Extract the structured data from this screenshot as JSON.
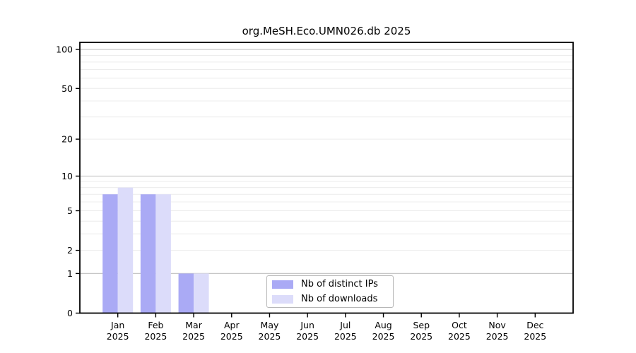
{
  "title": "org.MeSH.Eco.UMN026.db 2025",
  "chart_data": {
    "type": "bar",
    "title": "org.MeSH.Eco.UMN026.db 2025",
    "categories": [
      "Jan 2025",
      "Feb 2025",
      "Mar 2025",
      "Apr 2025",
      "May 2025",
      "Jun 2025",
      "Jul 2025",
      "Aug 2025",
      "Sep 2025",
      "Oct 2025",
      "Nov 2025",
      "Dec 2025"
    ],
    "x_tick_line1": [
      "Jan",
      "Feb",
      "Mar",
      "Apr",
      "May",
      "Jun",
      "Jul",
      "Aug",
      "Sep",
      "Oct",
      "Nov",
      "Dec"
    ],
    "x_tick_line2": "2025",
    "series": [
      {
        "name": "Nb of distinct IPs",
        "color": "#aaaaf5",
        "values": [
          7,
          7,
          1,
          0,
          0,
          0,
          0,
          0,
          0,
          0,
          0,
          0
        ]
      },
      {
        "name": "Nb of downloads",
        "color": "#dcdcfa",
        "values": [
          8,
          7,
          1,
          0,
          0,
          0,
          0,
          0,
          0,
          0,
          0,
          0
        ]
      }
    ],
    "y_scale": "log1p",
    "ylim": [
      0,
      113
    ],
    "y_tick_values": [
      "0",
      "1",
      "2",
      "5",
      "10",
      "20",
      "50",
      "100"
    ],
    "y_major_gridlines": [
      1,
      10,
      100
    ],
    "y_minor_gridlines": [
      2,
      3,
      4,
      5,
      6,
      7,
      8,
      9,
      20,
      30,
      40,
      50,
      60,
      70,
      80,
      90
    ],
    "grid": true,
    "legend_position": "bottom-center"
  },
  "colors": {
    "axis": "#000000",
    "major_grid": "#c7c7c7",
    "minor_grid": "#ececec",
    "background": "#ffffff"
  }
}
